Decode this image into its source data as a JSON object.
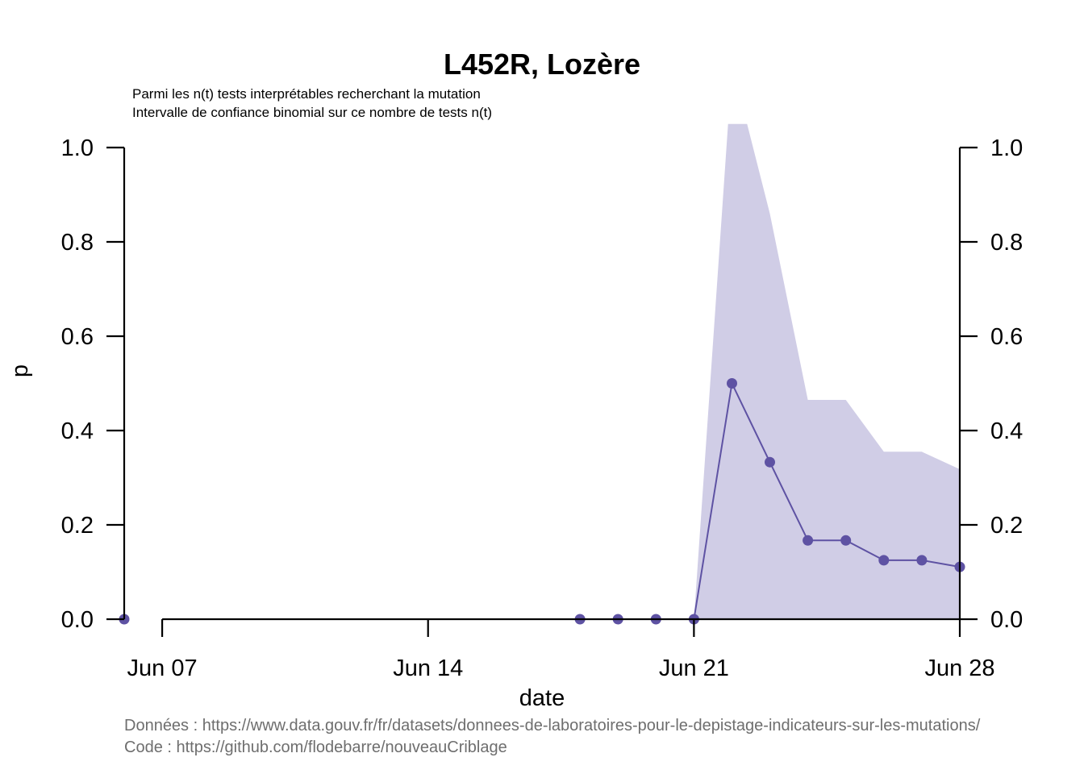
{
  "chart_data": {
    "type": "line",
    "title": "L452R, Lozère",
    "subtitle_lines": [
      "Parmi les n(t) tests interprétables recherchant la mutation",
      "Intervalle de confiance binomial sur ce nombre de tests n(t)"
    ],
    "xlabel": "date",
    "ylabel": "p",
    "x_ticks": [
      {
        "date": "2021-06-07",
        "label": "Jun 07"
      },
      {
        "date": "2021-06-14",
        "label": "Jun 14"
      },
      {
        "date": "2021-06-21",
        "label": "Jun 21"
      },
      {
        "date": "2021-06-28",
        "label": "Jun 28"
      }
    ],
    "y_ticks": [
      "0.0",
      "0.2",
      "0.4",
      "0.6",
      "0.8",
      "1.0"
    ],
    "xlim": [
      "2021-06-06",
      "2021-06-28"
    ],
    "ylim": [
      0,
      1
    ],
    "right_axis": true,
    "color": "#5e52a3",
    "ci_color": "#d0cde6",
    "series": [
      {
        "x": [
          "2021-06-06",
          "2021-06-18",
          "2021-06-19",
          "2021-06-20",
          "2021-06-21",
          "2021-06-22",
          "2021-06-23",
          "2021-06-24",
          "2021-06-25",
          "2021-06-26",
          "2021-06-27",
          "2021-06-28"
        ],
        "y": [
          0,
          0,
          0,
          0,
          0,
          0.5,
          0.333,
          0.167,
          0.167,
          0.125,
          0.125,
          0.111
        ]
      }
    ],
    "ci": {
      "x": [
        "2021-06-21",
        "2021-06-21.9",
        "2021-06-22.4",
        "2021-06-23",
        "2021-06-24",
        "2021-06-25",
        "2021-06-26",
        "2021-06-27",
        "2021-06-28"
      ],
      "upper": [
        0,
        1.05,
        1.05,
        0.86,
        0.465,
        0.465,
        0.355,
        0.355,
        0.318
      ],
      "lower": [
        0,
        0,
        0,
        0,
        0,
        0,
        0,
        0,
        0
      ]
    }
  },
  "caption_lines": [
    "Données : https://www.data.gouv.fr/fr/datasets/donnees-de-laboratoires-pour-le-depistage-indicateurs-sur-les-mutations/",
    "Code : https://github.com/flodebarre/nouveauCriblage"
  ]
}
